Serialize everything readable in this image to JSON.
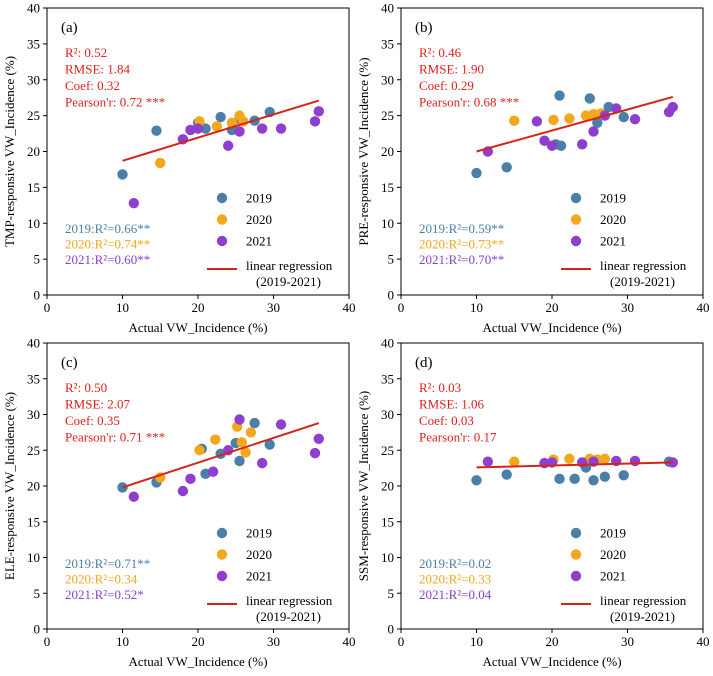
{
  "colors": {
    "2019": "#4a7fa8",
    "2020": "#f2a81a",
    "2021": "#8e3fcf",
    "regression": "#d62418",
    "stats_text": "#e0201a",
    "axis": "#000000"
  },
  "legend": {
    "items": [
      {
        "key": "2019",
        "label": "2019"
      },
      {
        "key": "2020",
        "label": "2020"
      },
      {
        "key": "2021",
        "label": "2021"
      }
    ],
    "regression_label_line1": "linear regression",
    "regression_label_line2": "(2019-2021)"
  },
  "chart_data": [
    {
      "type": "scatter",
      "panel_label": "(a)",
      "xlabel": "Actual VW_Incidence (%)",
      "ylabel": "TMP-responsive VW_Incidence (%)",
      "xlim": [
        0,
        40
      ],
      "ylim": [
        0,
        40
      ],
      "xticks": [
        "0",
        "10",
        "20",
        "30",
        "40"
      ],
      "yticks": [
        "0",
        "5",
        "10",
        "15",
        "20",
        "25",
        "30",
        "35",
        "40"
      ],
      "stats": [
        "R²: 0.52",
        "RMSE: 1.84",
        "Coef: 0.32",
        "Pearson'r: 0.72 ***"
      ],
      "year_stats": [
        {
          "key": "2019",
          "text": "2019:R²=0.66**"
        },
        {
          "key": "2020",
          "text": "2020:R²=0.74**"
        },
        {
          "key": "2021",
          "text": "2021:R²=0.60**"
        }
      ],
      "regression": {
        "x": [
          10,
          36
        ],
        "y": [
          18.7,
          27.1
        ]
      },
      "series": [
        {
          "name": "2019",
          "points": [
            [
              10,
              16.8
            ],
            [
              14.5,
              22.9
            ],
            [
              20,
              24
            ],
            [
              21,
              23.2
            ],
            [
              23,
              24.8
            ],
            [
              24.5,
              23
            ],
            [
              25.5,
              24.5
            ],
            [
              27.5,
              24.3
            ],
            [
              29.5,
              25.5
            ]
          ]
        },
        {
          "name": "2020",
          "points": [
            [
              15,
              18.4
            ],
            [
              20.2,
              24.2
            ],
            [
              22.5,
              23.5
            ],
            [
              24.5,
              24
            ],
            [
              25.5,
              25
            ],
            [
              26,
              24.2
            ]
          ]
        },
        {
          "name": "2021",
          "points": [
            [
              11.5,
              12.8
            ],
            [
              18,
              21.7
            ],
            [
              19,
              23
            ],
            [
              20,
              23.2
            ],
            [
              24,
              20.8
            ],
            [
              25.5,
              22.8
            ],
            [
              28.5,
              23.2
            ],
            [
              31,
              23.2
            ],
            [
              35.5,
              24.2
            ],
            [
              36,
              25.6
            ]
          ]
        }
      ]
    },
    {
      "type": "scatter",
      "panel_label": "(b)",
      "xlabel": "Actual VW_Incidence (%)",
      "ylabel": "PRE-responsive VW_Incidence (%)",
      "xlim": [
        0,
        40
      ],
      "ylim": [
        0,
        40
      ],
      "xticks": [
        "0",
        "10",
        "20",
        "30",
        "40"
      ],
      "yticks": [
        "0",
        "5",
        "10",
        "15",
        "20",
        "25",
        "30",
        "35",
        "40"
      ],
      "stats": [
        "R²: 0.46",
        "RMSE: 1.90",
        "Coef: 0.29",
        "Pearson'r: 0.68 ***"
      ],
      "year_stats": [
        {
          "key": "2019",
          "text": "2019:R²=0.59**"
        },
        {
          "key": "2020",
          "text": "2020:R²=0.73**"
        },
        {
          "key": "2021",
          "text": "2021:R²=0.70**"
        }
      ],
      "regression": {
        "x": [
          10,
          36
        ],
        "y": [
          20.0,
          27.6
        ]
      },
      "series": [
        {
          "name": "2019",
          "points": [
            [
              10,
              17
            ],
            [
              14,
              17.8
            ],
            [
              20.5,
              21
            ],
            [
              21,
              27.8
            ],
            [
              21.2,
              20.8
            ],
            [
              25,
              27.4
            ],
            [
              26,
              24
            ],
            [
              27.5,
              26.2
            ],
            [
              29.5,
              24.8
            ]
          ]
        },
        {
          "name": "2020",
          "points": [
            [
              15,
              24.3
            ],
            [
              20.2,
              24.4
            ],
            [
              22.3,
              24.6
            ],
            [
              24.5,
              25
            ],
            [
              25.5,
              25.2
            ],
            [
              26.5,
              25.3
            ]
          ]
        },
        {
          "name": "2021",
          "points": [
            [
              11.5,
              20
            ],
            [
              18,
              24.2
            ],
            [
              19,
              21.5
            ],
            [
              20,
              20.8
            ],
            [
              24,
              21
            ],
            [
              25.5,
              22.8
            ],
            [
              27,
              25
            ],
            [
              28.5,
              26
            ],
            [
              31,
              24.5
            ],
            [
              35.5,
              25.5
            ],
            [
              36,
              26.2
            ]
          ]
        }
      ]
    },
    {
      "type": "scatter",
      "panel_label": "(c)",
      "xlabel": "Actual VW_Incidence (%)",
      "ylabel": "ELE-responsive VW_Incidence (%)",
      "xlim": [
        0,
        40
      ],
      "ylim": [
        0,
        40
      ],
      "xticks": [
        "0",
        "10",
        "20",
        "30",
        "40"
      ],
      "yticks": [
        "0",
        "5",
        "10",
        "15",
        "20",
        "25",
        "30",
        "35",
        "40"
      ],
      "stats": [
        "R²: 0.50",
        "RMSE: 2.07",
        "Coef: 0.35",
        "Pearson'r: 0.71 ***"
      ],
      "year_stats": [
        {
          "key": "2019",
          "text": "2019:R²=0.71**"
        },
        {
          "key": "2020",
          "text": "2020:R²=0.34"
        },
        {
          "key": "2021",
          "text": "2021:R²=0.52*"
        }
      ],
      "regression": {
        "x": [
          10,
          36
        ],
        "y": [
          19.8,
          28.8
        ]
      },
      "series": [
        {
          "name": "2019",
          "points": [
            [
              10,
              19.8
            ],
            [
              14.5,
              20.5
            ],
            [
              20.5,
              25.2
            ],
            [
              21,
              21.7
            ],
            [
              23,
              24.5
            ],
            [
              25,
              26
            ],
            [
              25.5,
              23.5
            ],
            [
              27.5,
              28.8
            ],
            [
              29.5,
              25.8
            ]
          ]
        },
        {
          "name": "2020",
          "points": [
            [
              15,
              21.2
            ],
            [
              20.2,
              25
            ],
            [
              22.3,
              26.5
            ],
            [
              25.2,
              28.3
            ],
            [
              25.8,
              26.1
            ],
            [
              26.3,
              24.7
            ],
            [
              27,
              27.5
            ]
          ]
        },
        {
          "name": "2021",
          "points": [
            [
              11.5,
              18.5
            ],
            [
              18,
              19.3
            ],
            [
              19,
              21
            ],
            [
              22,
              22
            ],
            [
              24,
              25
            ],
            [
              25.5,
              29.3
            ],
            [
              28.5,
              23.2
            ],
            [
              31,
              28.6
            ],
            [
              35.5,
              24.6
            ],
            [
              36,
              26.6
            ]
          ]
        }
      ]
    },
    {
      "type": "scatter",
      "panel_label": "(d)",
      "xlabel": "Actual VW_Incidence (%)",
      "ylabel": "SSM-responsive VW_Incidence (%)",
      "xlim": [
        0,
        40
      ],
      "ylim": [
        0,
        40
      ],
      "xticks": [
        "0",
        "10",
        "20",
        "30",
        "40"
      ],
      "yticks": [
        "0",
        "5",
        "10",
        "15",
        "20",
        "25",
        "30",
        "35",
        "40"
      ],
      "stats": [
        "R²: 0.03",
        "RMSE: 1.06",
        "Coef: 0.03",
        "Pearson'r: 0.17"
      ],
      "year_stats": [
        {
          "key": "2019",
          "text": "2019:R²=0.02"
        },
        {
          "key": "2020",
          "text": "2020:R²=0.33"
        },
        {
          "key": "2021",
          "text": "2021:R²=0.04"
        }
      ],
      "regression": {
        "x": [
          10,
          36
        ],
        "y": [
          22.6,
          23.3
        ]
      },
      "series": [
        {
          "name": "2019",
          "points": [
            [
              10,
              20.8
            ],
            [
              14,
              21.6
            ],
            [
              21,
              21
            ],
            [
              23,
              21
            ],
            [
              24.5,
              22.6
            ],
            [
              25.5,
              20.8
            ],
            [
              27,
              21.3
            ],
            [
              29.5,
              21.5
            ],
            [
              35.5,
              23.4
            ]
          ]
        },
        {
          "name": "2020",
          "points": [
            [
              15,
              23.4
            ],
            [
              20.2,
              23.7
            ],
            [
              22.3,
              23.8
            ],
            [
              25,
              23.8
            ],
            [
              26,
              23.7
            ],
            [
              27,
              23.8
            ]
          ]
        },
        {
          "name": "2021",
          "points": [
            [
              11.5,
              23.4
            ],
            [
              19,
              23.2
            ],
            [
              20,
              23.3
            ],
            [
              24,
              23.3
            ],
            [
              25.5,
              23.4
            ],
            [
              28.5,
              23.5
            ],
            [
              31,
              23.5
            ],
            [
              36,
              23.3
            ]
          ]
        }
      ]
    }
  ]
}
